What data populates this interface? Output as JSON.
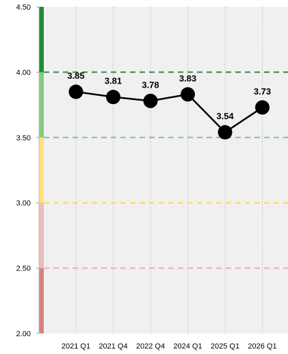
{
  "chart_data": {
    "type": "line",
    "categories": [
      "2021 Q1",
      "2021 Q4",
      "2022 Q4",
      "2024 Q1",
      "2025 Q1",
      "2026 Q1"
    ],
    "series": [
      {
        "values": [
          3.85,
          3.81,
          3.78,
          3.83,
          3.54,
          3.73
        ],
        "color": "#000000"
      }
    ],
    "data_labels": [
      "3.85",
      "3.81",
      "3.78",
      "3.83",
      "3.54",
      "3.73"
    ],
    "ylim": [
      2.0,
      4.5
    ],
    "y_ticks": [
      "2.00",
      "2.50",
      "3.00",
      "3.50",
      "4.00",
      "4.50"
    ],
    "y_tick_values": [
      2.0,
      2.5,
      3.0,
      3.5,
      4.0,
      4.5
    ],
    "bands": [
      {
        "from": 2.0,
        "to": 2.5,
        "color": "#d98080"
      },
      {
        "from": 2.5,
        "to": 3.0,
        "color": "#ebbcbc"
      },
      {
        "from": 3.0,
        "to": 3.5,
        "color": "#fde07a"
      },
      {
        "from": 3.5,
        "to": 4.0,
        "color": "#86c97f"
      },
      {
        "from": 4.0,
        "to": 4.5,
        "color": "#1f8a3a"
      }
    ],
    "reference_lines": [
      {
        "value": 2.5,
        "color": "#eab0b0"
      },
      {
        "value": 3.0,
        "color": "#fbd85a"
      },
      {
        "value": 3.5,
        "color": "#7ccc7a"
      },
      {
        "value": 4.0,
        "color": "#2e8b3e"
      }
    ],
    "background_color": "#f0f0f0",
    "grid": true
  }
}
